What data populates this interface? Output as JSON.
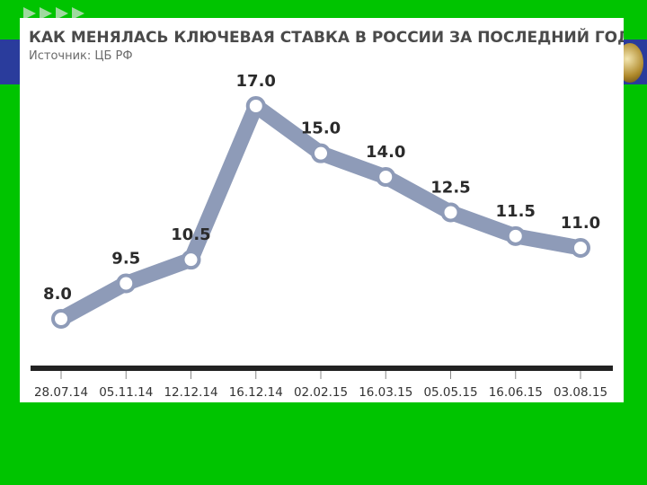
{
  "chart_data": {
    "type": "line",
    "title": "КАК МЕНЯЛАСЬ КЛЮЧЕВАЯ СТАВКА В РОССИИ ЗА ПОСЛЕДНИЙ ГОД, %",
    "subtitle": "Источник: ЦБ РФ",
    "categories": [
      "28.07.14",
      "05.11.14",
      "12.12.14",
      "16.12.14",
      "02.02.15",
      "16.03.15",
      "05.05.15",
      "16.06.15",
      "03.08.15"
    ],
    "values": [
      8.0,
      9.5,
      10.5,
      17.0,
      15.0,
      14.0,
      12.5,
      11.5,
      11.0
    ],
    "value_labels": [
      "8.0",
      "9.5",
      "10.5",
      "17.0",
      "15.0",
      "14.0",
      "12.5",
      "11.5",
      "11.0"
    ],
    "xlabel": "",
    "ylabel": "",
    "ylim": [
      5,
      18
    ],
    "grid": false,
    "legend": "none",
    "colors": {
      "line": "#8e9bb8",
      "axis": "#222222",
      "background": "#00c400"
    }
  }
}
